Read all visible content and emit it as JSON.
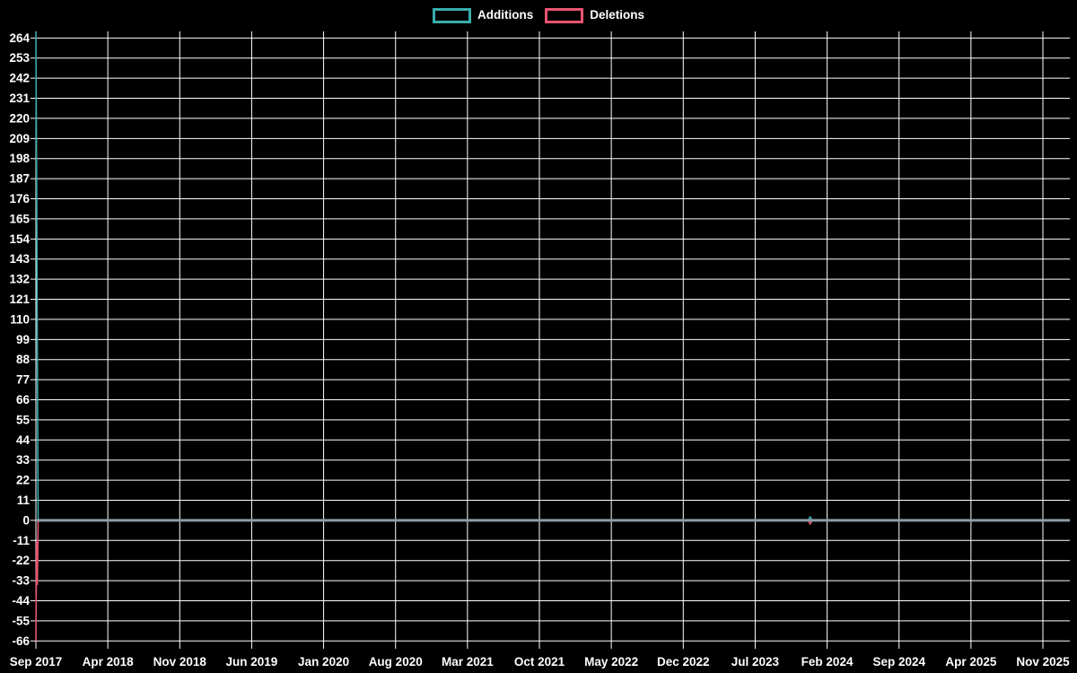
{
  "legend": {
    "items": [
      {
        "label": "Additions",
        "color": "#3aacac"
      },
      {
        "label": "Deletions",
        "color": "#e9546f"
      }
    ]
  },
  "chart_data": {
    "type": "line",
    "title": "",
    "xlabel": "",
    "ylabel": "",
    "background_color": "#000000",
    "grid": "on",
    "grid_color": "#ffffff",
    "zero_line_color": "#8c9ca4",
    "text_color": "#ffffff",
    "legend_position": "top-center",
    "x_tick_labels": [
      "Sep 2017",
      "Apr 2018",
      "Nov 2018",
      "Jun 2019",
      "Jan 2020",
      "Aug 2020",
      "Mar 2021",
      "Oct 2021",
      "May 2022",
      "Dec 2022",
      "Jul 2023",
      "Feb 2024",
      "Sep 2024",
      "Apr 2025",
      "Nov 2025"
    ],
    "x_tick_interval_months": 7,
    "y_ticks": {
      "min": -66,
      "max": 264,
      "step": 11
    },
    "ylim": [
      -66,
      267.6
    ],
    "series": [
      {
        "name": "Additions",
        "color": "#3aacac",
        "points": [
          [
            0,
            267
          ],
          [
            0.07,
            187
          ],
          [
            0.14,
            88
          ],
          [
            0.22,
            0
          ],
          [
            75.15,
            0
          ],
          [
            75.35,
            2
          ],
          [
            75.55,
            0
          ],
          [
            100.6,
            0
          ]
        ]
      },
      {
        "name": "Deletions",
        "color": "#e9546f",
        "points": [
          [
            0,
            -66
          ],
          [
            0.07,
            -12
          ],
          [
            0.14,
            -35
          ],
          [
            0.22,
            0
          ],
          [
            75.15,
            0
          ],
          [
            75.35,
            -2
          ],
          [
            75.55,
            0
          ],
          [
            100.6,
            0
          ]
        ]
      }
    ]
  }
}
